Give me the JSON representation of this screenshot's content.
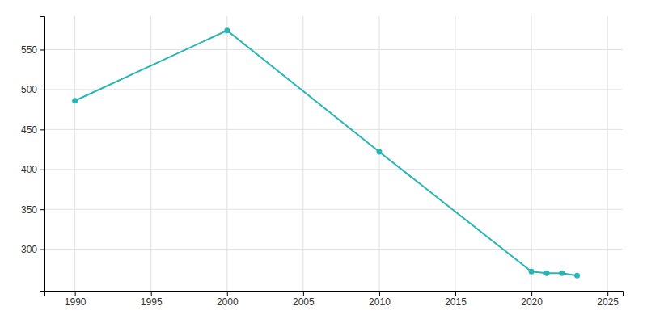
{
  "chart_data": {
    "type": "line",
    "x": [
      1990,
      2000,
      2010,
      2020,
      2021,
      2022,
      2023
    ],
    "values": [
      486,
      574,
      422,
      272,
      270,
      270,
      267
    ],
    "color": "#2ab5b5",
    "marker": "circle",
    "xlim": [
      1988,
      2026
    ],
    "ylim": [
      248,
      592
    ],
    "xticks": [
      1990,
      1995,
      2000,
      2005,
      2010,
      2015,
      2020,
      2025
    ],
    "yticks": [
      300,
      350,
      400,
      450,
      500,
      550
    ],
    "grid": true
  }
}
